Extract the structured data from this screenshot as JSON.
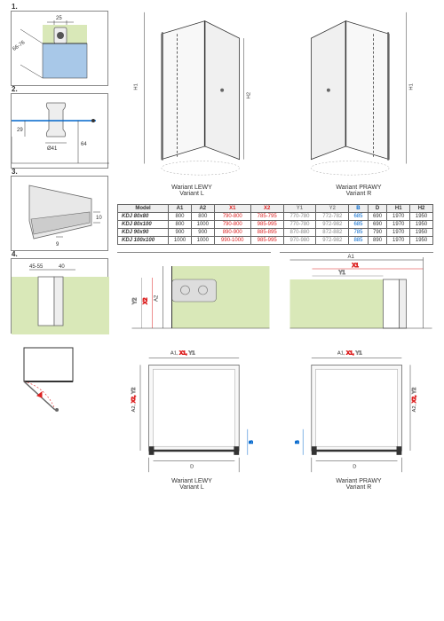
{
  "details": {
    "d1": {
      "num": "1.",
      "dim1": "25",
      "dim2": "66-76"
    },
    "d2": {
      "num": "2.",
      "dim1": "29",
      "dim2": "64",
      "dim3": "Ø41"
    },
    "d3": {
      "num": "3.",
      "dim1": "9",
      "dim2": "10"
    },
    "d4": {
      "num": "4.",
      "dim1": "45-55",
      "dim2": "40"
    }
  },
  "iso": {
    "left_caption1": "Wariant LEWY",
    "left_caption2": "Variant L",
    "right_caption1": "Wariant PRAWY",
    "right_caption2": "Variant R",
    "H1": "H1",
    "H2": "H2"
  },
  "table": {
    "headers": [
      "Model",
      "A1",
      "A2",
      "X1",
      "X2",
      "Y1",
      "Y2",
      "B",
      "D",
      "H1",
      "H2"
    ],
    "header_classes": [
      "",
      "",
      "",
      "x-col",
      "x-col",
      "y-col",
      "y-col",
      "b-col",
      "",
      "",
      ""
    ],
    "rows": [
      [
        "KDJ 80x80",
        "800",
        "800",
        "790-800",
        "785-795",
        "770-780",
        "772-782",
        "685",
        "690",
        "1970",
        "1950"
      ],
      [
        "KDJ 80x100",
        "800",
        "1000",
        "790-800",
        "985-995",
        "770-780",
        "972-982",
        "685",
        "690",
        "1970",
        "1950"
      ],
      [
        "KDJ 90x90",
        "900",
        "900",
        "890-900",
        "885-895",
        "870-880",
        "872-882",
        "785",
        "790",
        "1970",
        "1950"
      ],
      [
        "KDJ 100x100",
        "1000",
        "1000",
        "990-1000",
        "985-995",
        "970-980",
        "972-982",
        "885",
        "890",
        "1970",
        "1950"
      ]
    ]
  },
  "mid": {
    "A1": "A1",
    "A2": "A2",
    "X1": "X1",
    "X2": "X2",
    "Y1": "Y1",
    "Y2": "Y2"
  },
  "plan": {
    "top_label_a": "A1,",
    "top_label_x": "X1,",
    "top_label_y": "Y1",
    "side_label_a": "A2,",
    "side_label_x": "X2,",
    "side_label_y": "Y2",
    "B": "B",
    "D": "D",
    "left_caption1": "Wariant LEWY",
    "left_caption2": "Variant L",
    "right_caption1": "Wariant PRAWY",
    "right_caption2": "Variant R"
  },
  "colors": {
    "accent_green": "#d9e8b8",
    "red": "#d22",
    "blue": "#0066cc",
    "gray": "#888888"
  }
}
